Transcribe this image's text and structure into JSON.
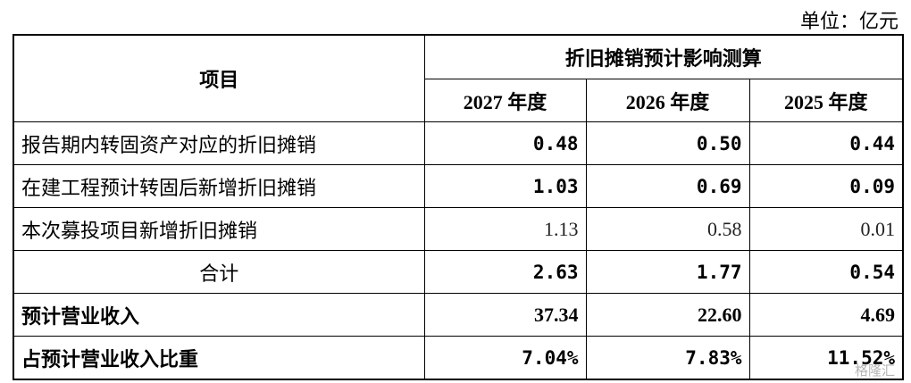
{
  "unit": "单位：亿元",
  "table": {
    "item_header": "项目",
    "group_header": "折旧摊销预计影响测算",
    "years": [
      "2027 年度",
      "2026 年度",
      "2025 年度"
    ],
    "rows": [
      {
        "label": "报告期内转固资产对应的折旧摊销",
        "values": [
          "0.48",
          "0.50",
          "0.44"
        ]
      },
      {
        "label": "在建工程预计转固后新增折旧摊销",
        "values": [
          "1.03",
          "0.69",
          "0.09"
        ]
      },
      {
        "label": "本次募投项目新增折旧摊销",
        "values": [
          "1.13",
          "0.58",
          "0.01"
        ]
      },
      {
        "label": "合计",
        "values": [
          "2.63",
          "1.77",
          "0.54"
        ]
      },
      {
        "label": "预计营业收入",
        "values": [
          "37.34",
          "22.60",
          "4.69"
        ]
      },
      {
        "label": "占预计营业收入比重",
        "values": [
          "7.04%",
          "7.83%",
          "11.52%"
        ]
      }
    ]
  },
  "watermark": "格隆汇"
}
